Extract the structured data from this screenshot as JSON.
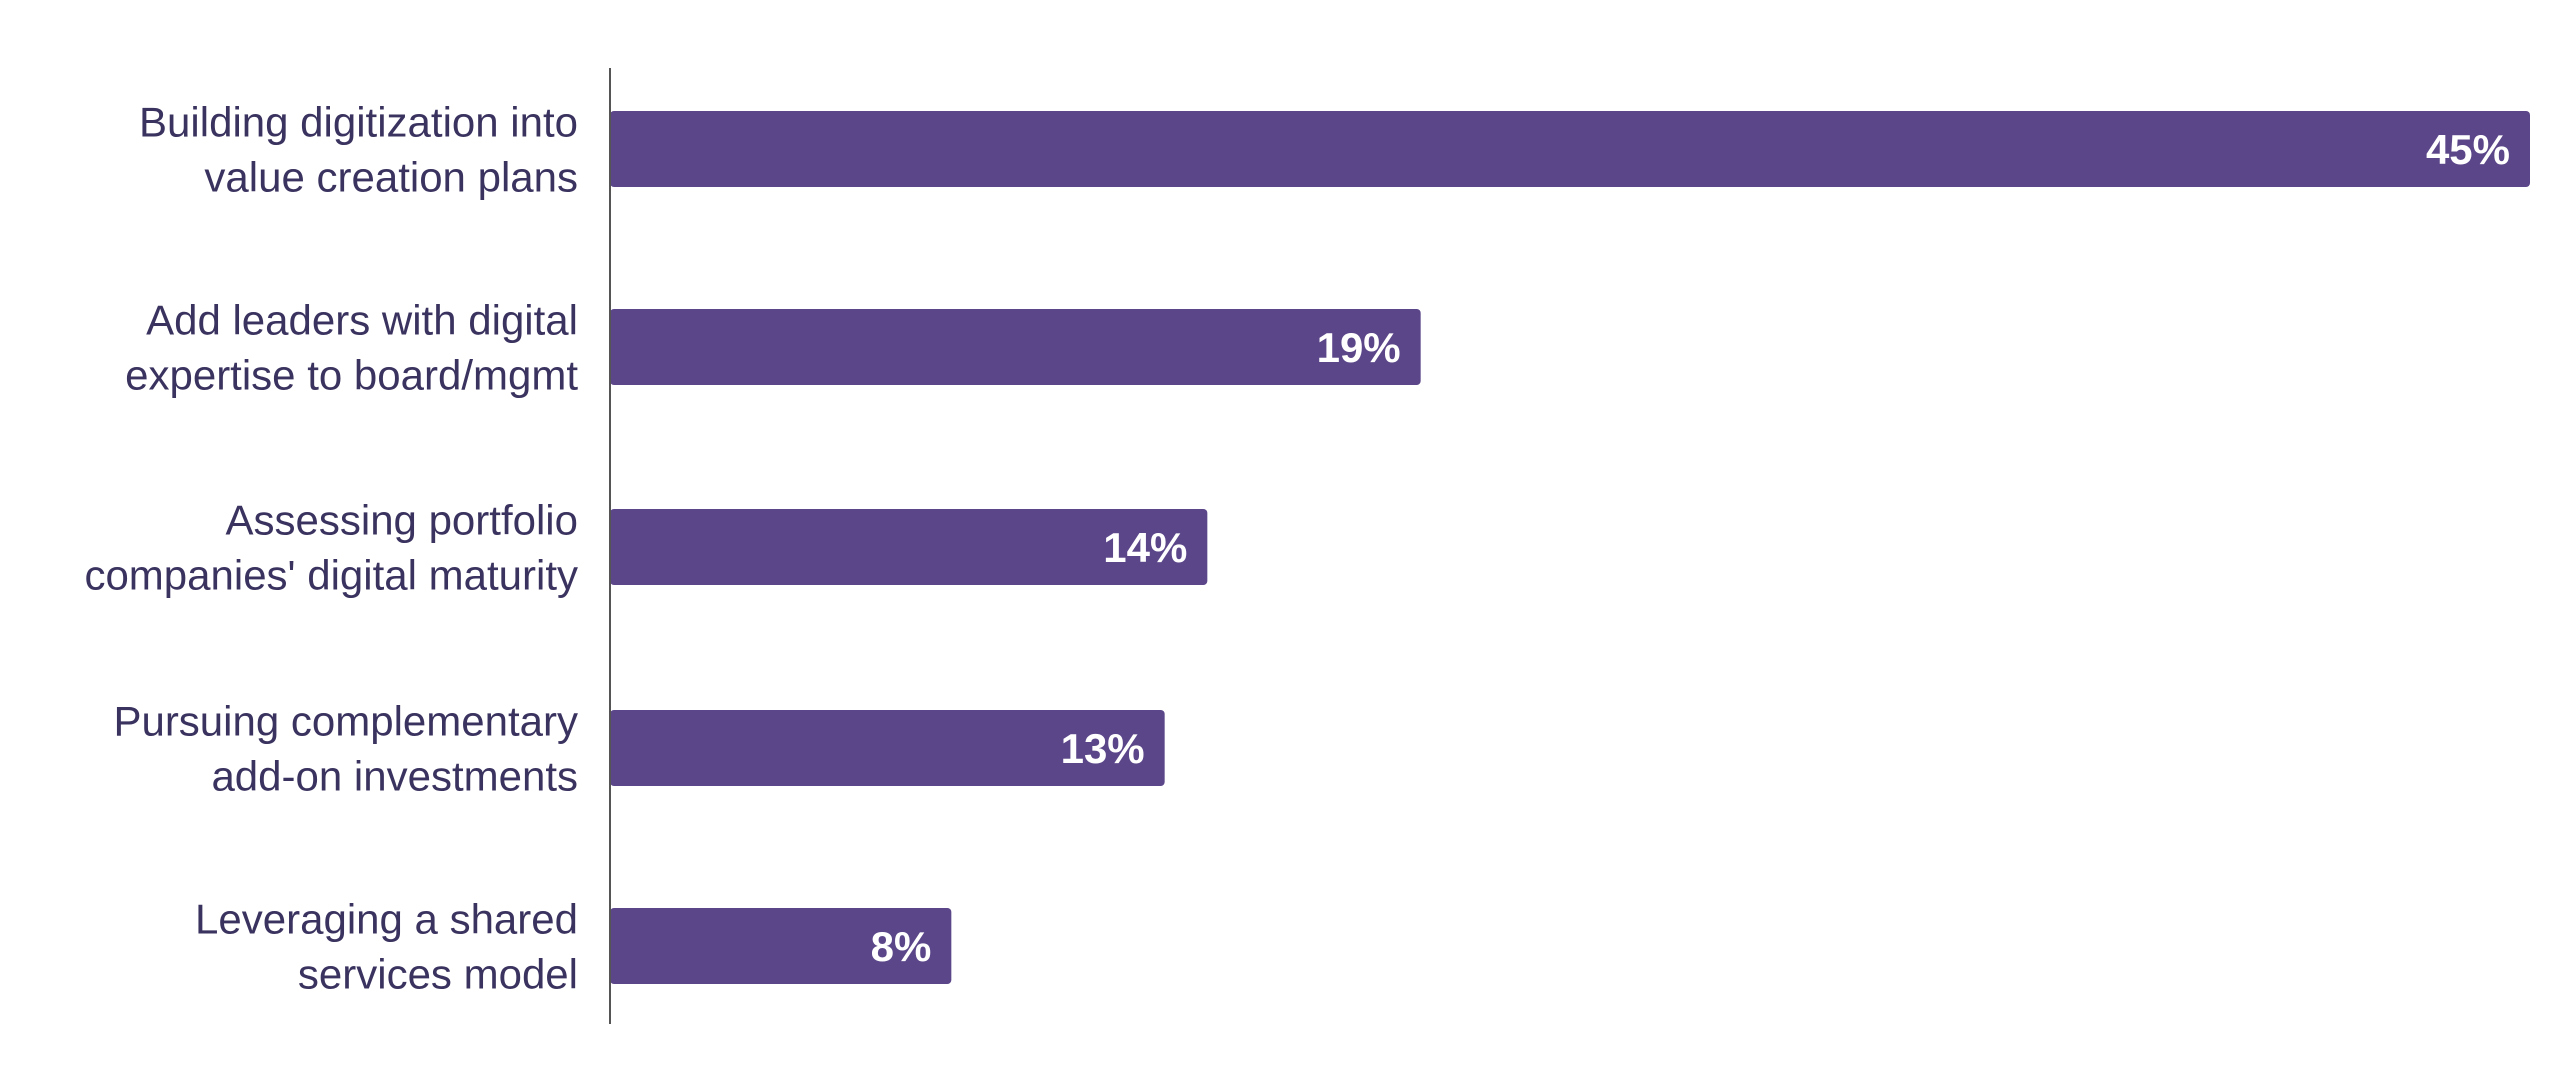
{
  "chart_data": {
    "type": "bar",
    "orientation": "horizontal",
    "categories": [
      [
        "Building digitization into",
        "value creation plans"
      ],
      [
        "Add leaders with digital",
        "expertise to board/mgmt"
      ],
      [
        "Assessing portfolio",
        "companies' digital maturity"
      ],
      [
        "Pursuing complementary",
        "add-on investments"
      ],
      [
        "Leveraging a shared",
        "services model"
      ]
    ],
    "values": [
      45,
      19,
      14,
      13,
      8
    ],
    "value_labels": [
      "45%",
      "19%",
      "14%",
      "13%",
      "8%"
    ],
    "xlim": [
      0,
      45
    ],
    "bar_color": "#5b4689",
    "label_color": "#3a335f",
    "axis_color": "#555555",
    "grid": false,
    "legend": "none"
  }
}
